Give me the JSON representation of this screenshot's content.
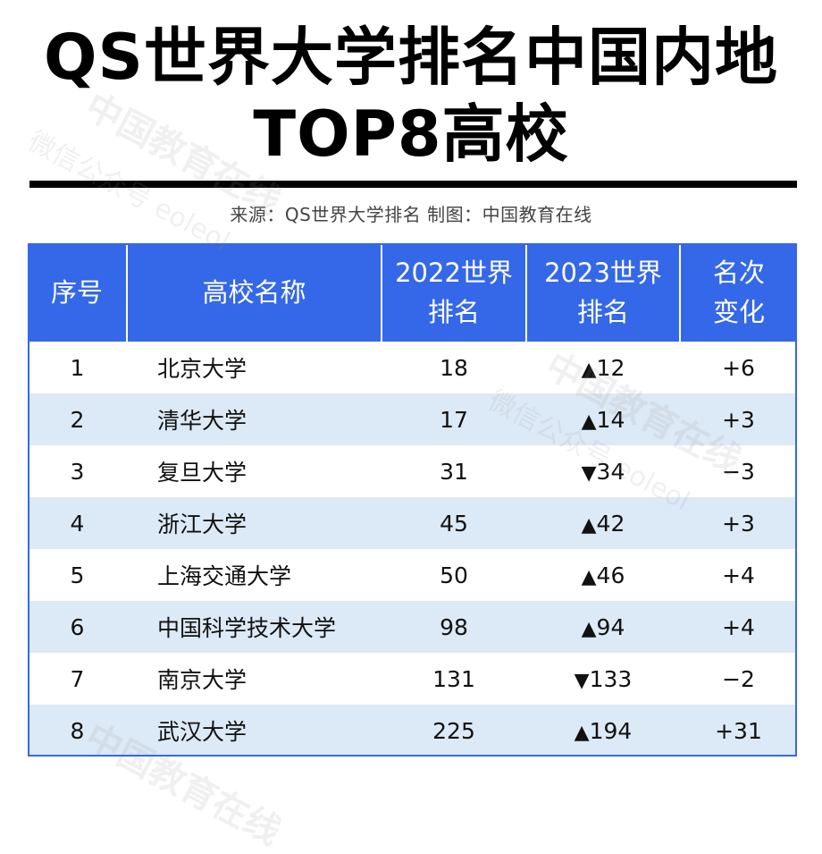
{
  "title_line1": "QS世界大学排名中国内地",
  "title_line2": "TOP8高校",
  "source": "来源：QS世界大学排名    制图：中国教育在线",
  "watermark": "中国教育在线",
  "watermark_sub": "微信公众号 eoleol",
  "colors": {
    "header_bg": "#3568e8",
    "stripe_bg": "#dce9f6",
    "rule": "#000000"
  },
  "chart_data": {
    "type": "table",
    "columns": [
      "序号",
      "高校名称",
      "2022世界排名",
      "2023世界排名",
      "名次变化"
    ],
    "header_lines": [
      [
        "序号"
      ],
      [
        "高校名称"
      ],
      [
        "2022世界",
        "排名"
      ],
      [
        "2023世界",
        "排名"
      ],
      [
        "名次",
        "变化"
      ]
    ],
    "rows": [
      {
        "index": "1",
        "name": "北京大学",
        "rank_2022": "18",
        "arrow": "▲",
        "rank_2023": "12",
        "change": "+6"
      },
      {
        "index": "2",
        "name": "清华大学",
        "rank_2022": "17",
        "arrow": "▲",
        "rank_2023": "14",
        "change": "+3"
      },
      {
        "index": "3",
        "name": "复旦大学",
        "rank_2022": "31",
        "arrow": "▼",
        "rank_2023": "34",
        "change": "−3"
      },
      {
        "index": "4",
        "name": "浙江大学",
        "rank_2022": "45",
        "arrow": "▲",
        "rank_2023": "42",
        "change": "+3"
      },
      {
        "index": "5",
        "name": "上海交通大学",
        "rank_2022": "50",
        "arrow": "▲",
        "rank_2023": "46",
        "change": "+4"
      },
      {
        "index": "6",
        "name": "中国科学技术大学",
        "rank_2022": "98",
        "arrow": "▲",
        "rank_2023": "94",
        "change": "+4"
      },
      {
        "index": "7",
        "name": "南京大学",
        "rank_2022": "131",
        "arrow": "▼",
        "rank_2023": "133",
        "change": "−2"
      },
      {
        "index": "8",
        "name": "武汉大学",
        "rank_2022": "225",
        "arrow": "▲",
        "rank_2023": "194",
        "change": "+31"
      }
    ]
  }
}
